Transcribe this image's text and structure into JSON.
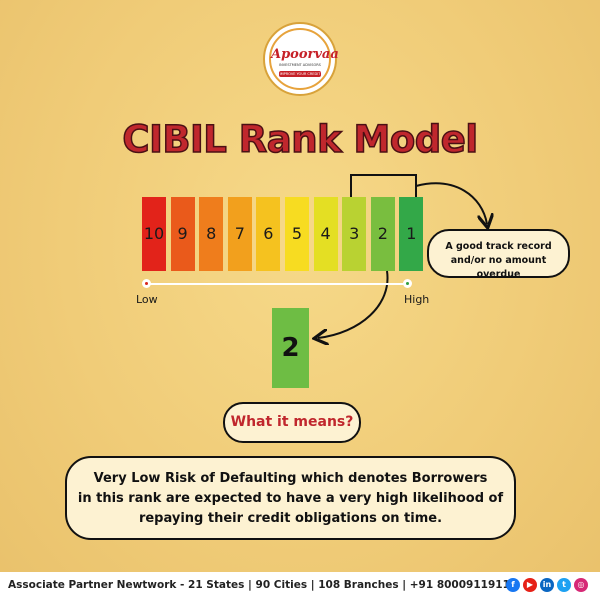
{
  "logo": {
    "brand": "Apoorvaa",
    "sub": "INVESTMENT ADVISORS",
    "tagline": "IMPROVE YOUR CREDIT"
  },
  "title": "CIBIL Rank Model",
  "scale": {
    "ranks": [
      {
        "label": "10",
        "color": "#e2231a"
      },
      {
        "label": "9",
        "color": "#ea5a1b"
      },
      {
        "label": "8",
        "color": "#ef7d1c"
      },
      {
        "label": "7",
        "color": "#f2a01d"
      },
      {
        "label": "6",
        "color": "#f5c21f"
      },
      {
        "label": "5",
        "color": "#f7dc21"
      },
      {
        "label": "4",
        "color": "#e4df23"
      },
      {
        "label": "3",
        "color": "#b9d232"
      },
      {
        "label": "2",
        "color": "#79be3f"
      },
      {
        "label": "1",
        "color": "#33a848"
      }
    ],
    "low_label": "Low",
    "high_label": "High",
    "low_color": "#d8261d",
    "high_color": "#2f9f3f"
  },
  "callout_text": "A good track record and/or no amount overdue",
  "highlight": {
    "rank": "2",
    "color": "#6ebd44"
  },
  "what_it_means": "What it means?",
  "description": {
    "line1": "Very Low Risk of Defaulting which denotes Borrowers",
    "line2": "in this rank are expected to have a very high likelihood of",
    "line3": "repaying their credit obligations on time."
  },
  "footer": {
    "text": "Associate Partner Newtwork - 21 States | 90 Cities | 108 Branches   |   +91 8000911911   |",
    "social": [
      {
        "icon": "facebook-icon",
        "glyph": "f",
        "color": "#1877f2"
      },
      {
        "icon": "youtube-icon",
        "glyph": "▶",
        "color": "#e62117"
      },
      {
        "icon": "linkedin-icon",
        "glyph": "in",
        "color": "#0a66c2"
      },
      {
        "icon": "twitter-icon",
        "glyph": "t",
        "color": "#1da1f2"
      },
      {
        "icon": "instagram-icon",
        "glyph": "◎",
        "color": "#d62976"
      }
    ]
  }
}
